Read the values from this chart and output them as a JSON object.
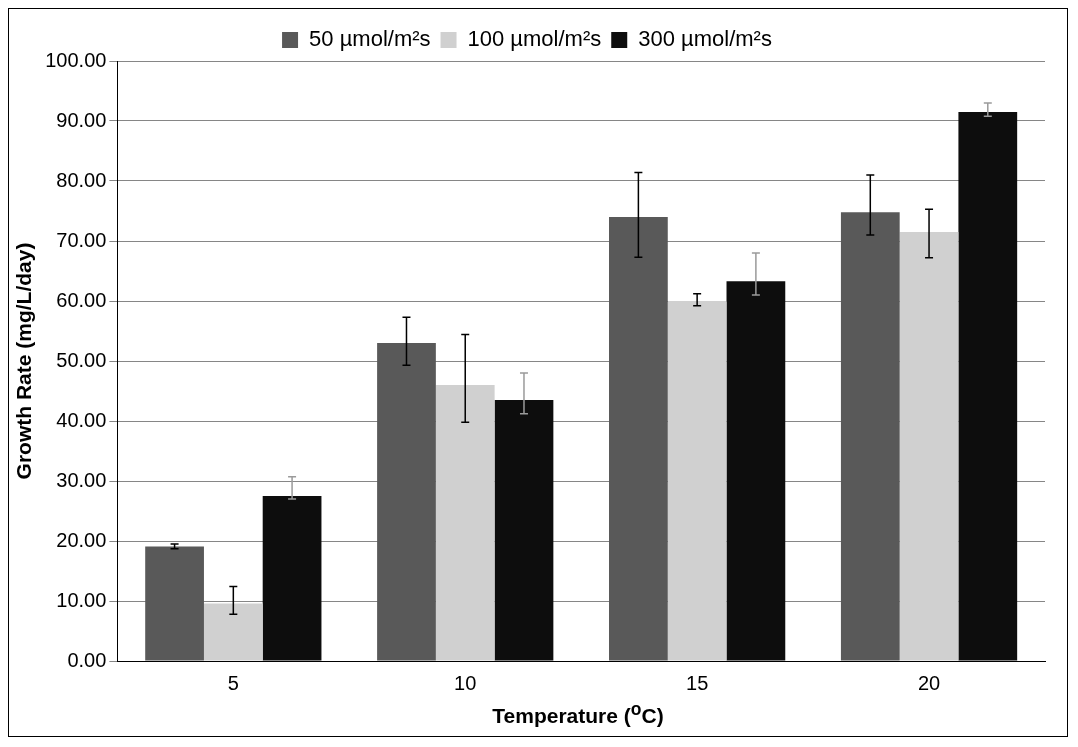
{
  "chart_data": {
    "type": "bar",
    "xlabel": "Temperature ($^{o}$C)",
    "ylabel": "Growth Rate (mg/L/day)",
    "categories": [
      "5",
      "10",
      "15",
      "20"
    ],
    "series": [
      {
        "name": "50 µmol/m²s",
        "color": "#595959",
        "values": [
          19.1,
          53.0,
          74.0,
          74.8
        ],
        "errors": [
          [
            18.7,
            19.5
          ],
          [
            49.3,
            57.3
          ],
          [
            67.3,
            81.4
          ],
          [
            71.0,
            81.0
          ]
        ]
      },
      {
        "name": "100 µmol/m²s",
        "color": "#d0d0d0",
        "values": [
          9.6,
          46.0,
          60.0,
          71.5
        ],
        "errors": [
          [
            7.8,
            12.4
          ],
          [
            39.8,
            54.4
          ],
          [
            59.2,
            61.2
          ],
          [
            67.2,
            75.3
          ]
        ]
      },
      {
        "name": "300 µmol/m²s",
        "color": "#0d0d0d",
        "values": [
          27.5,
          43.5,
          63.3,
          91.5
        ],
        "errors": [
          [
            27.0,
            30.7
          ],
          [
            41.2,
            48.0
          ],
          [
            61.0,
            68.0
          ],
          [
            90.8,
            93.0
          ]
        ]
      }
    ],
    "ylim": [
      0,
      100
    ],
    "yticks": [
      {
        "value": 0,
        "label": "0.00"
      },
      {
        "value": 10,
        "label": "10.00"
      },
      {
        "value": 20,
        "label": "20.00"
      },
      {
        "value": 30,
        "label": "30.00"
      },
      {
        "value": 40,
        "label": "40.00"
      },
      {
        "value": 50,
        "label": "50.00"
      },
      {
        "value": 60,
        "label": "60.00"
      },
      {
        "value": 70,
        "label": "70.00"
      },
      {
        "value": 80,
        "label": "80.00"
      },
      {
        "value": 90,
        "label": "90.00"
      },
      {
        "value": 100,
        "label": "100.00"
      }
    ],
    "grid": "y",
    "legend": "top"
  }
}
